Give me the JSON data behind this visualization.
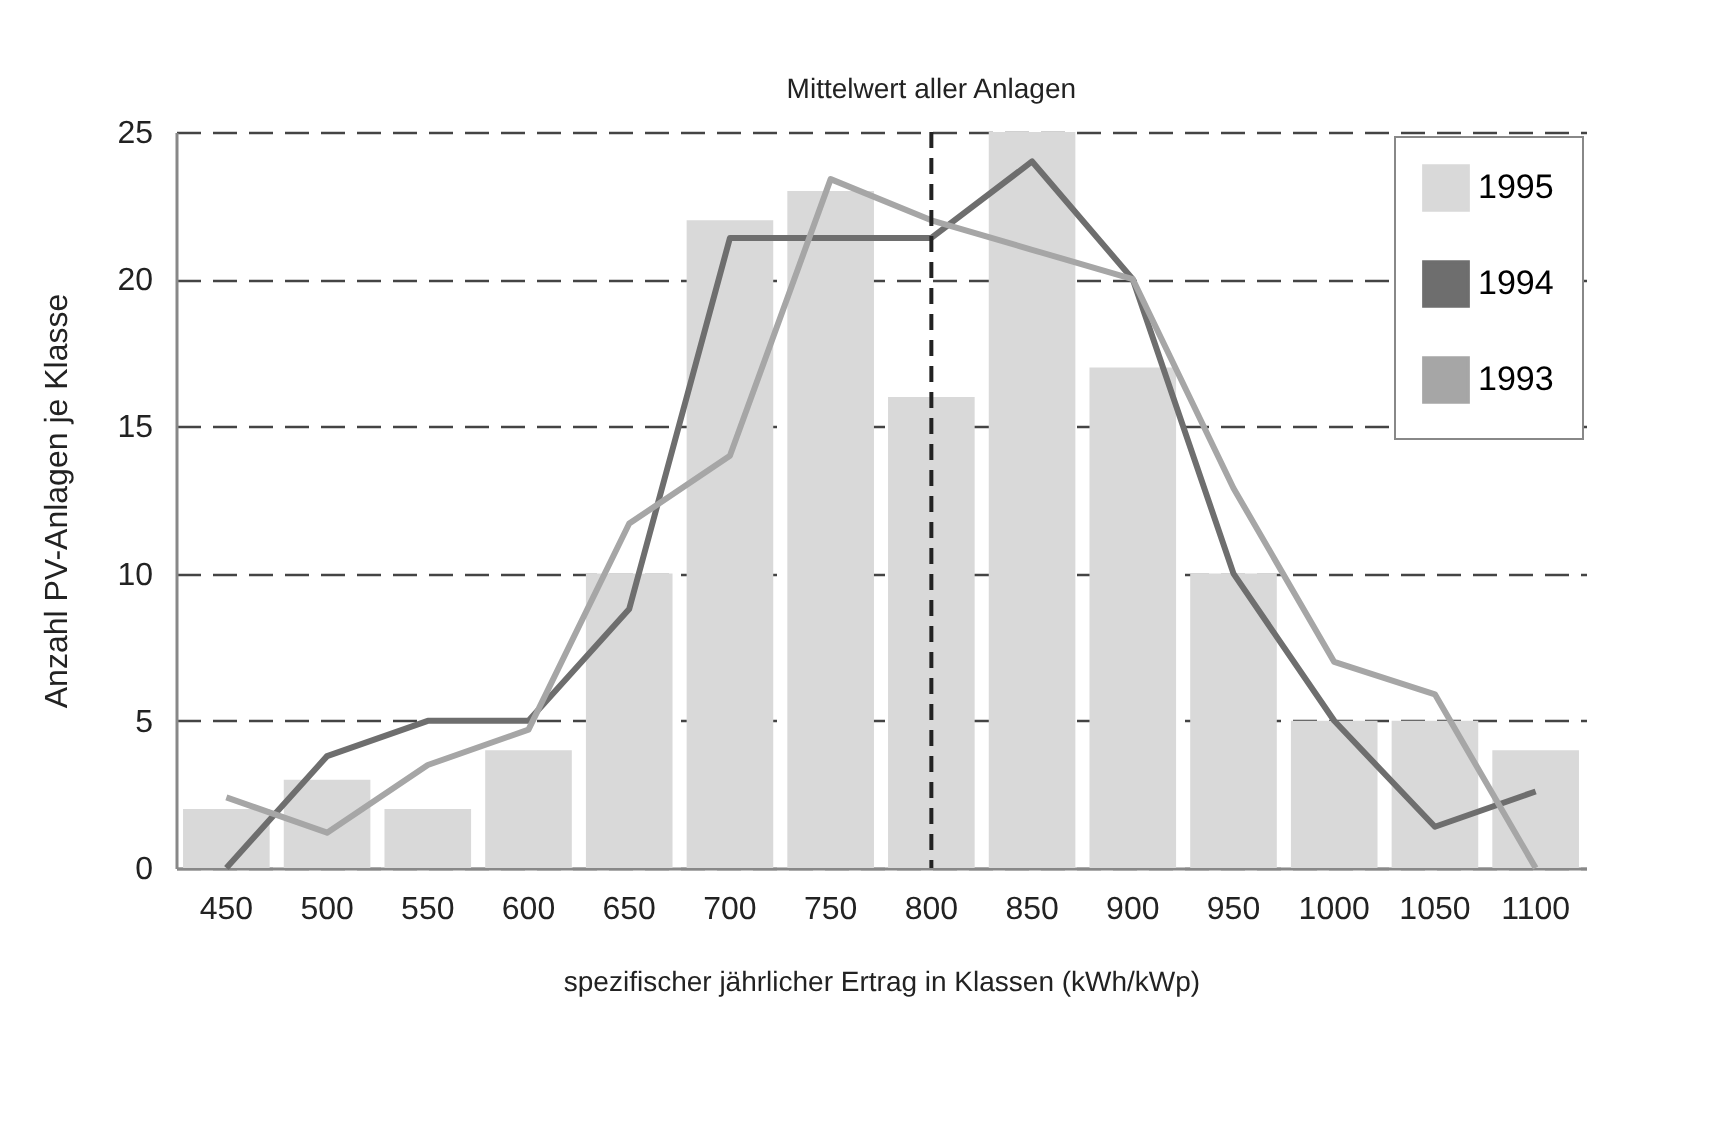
{
  "chart_data": {
    "type": "bar",
    "xlabel": "spezifischer jährlicher Ertrag in Klassen (kWh/kWp)",
    "ylabel": "Anzahl PV-Anlagen je Klasse",
    "categories": [
      "450",
      "500",
      "550",
      "600",
      "650",
      "700",
      "750",
      "800",
      "850",
      "900",
      "950",
      "1000",
      "1050",
      "1100"
    ],
    "series": [
      {
        "name": "1995",
        "color": "#d9d9d9",
        "values": [
          2,
          3,
          2,
          4,
          10,
          22,
          23,
          16,
          25,
          17,
          10,
          5,
          5,
          4
        ]
      },
      {
        "name": "1994",
        "type": "line",
        "color": "#6e6e6e",
        "values": [
          0,
          3.8,
          5,
          5,
          8.8,
          21.4,
          21.4,
          21.4,
          24,
          20,
          10,
          5,
          1.4,
          2.6
        ]
      },
      {
        "name": "1993",
        "type": "line",
        "color": "#a6a6a6",
        "values": [
          2.4,
          1.2,
          3.5,
          4.7,
          11.7,
          14,
          23.4,
          22,
          21,
          20,
          12.9,
          7,
          5.9,
          0
        ]
      }
    ],
    "ylim": [
      0,
      25
    ],
    "yticks": [
      0,
      5,
      10,
      15,
      20,
      25
    ],
    "grid": "y",
    "legend": "top right",
    "ref_lines": [
      {
        "axis": "x",
        "value": "800",
        "label": "Mittelwert aller Anlagen",
        "color": "#222222",
        "line_style": "dashed"
      }
    ]
  }
}
